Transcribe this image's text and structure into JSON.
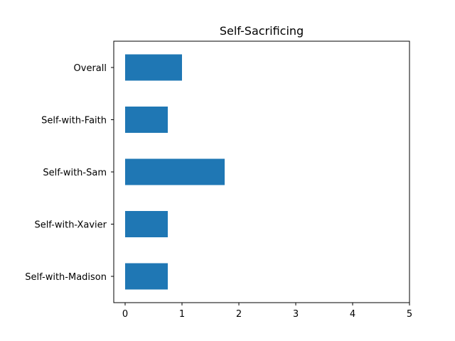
{
  "chart_data": {
    "type": "bar",
    "orientation": "horizontal",
    "title": "Self-Sacrificing",
    "xlabel": "",
    "ylabel": "",
    "categories": [
      "Overall",
      "Self-with-Faith",
      "Self-with-Sam",
      "Self-with-Xavier",
      "Self-with-Madison"
    ],
    "values": [
      1.0,
      0.75,
      1.75,
      0.75,
      0.75
    ],
    "xlim": [
      -0.2,
      5
    ],
    "xticks": [
      0,
      1,
      2,
      3,
      4,
      5
    ],
    "grid": false,
    "legend": "none",
    "bar_color": "#1f77b4"
  }
}
